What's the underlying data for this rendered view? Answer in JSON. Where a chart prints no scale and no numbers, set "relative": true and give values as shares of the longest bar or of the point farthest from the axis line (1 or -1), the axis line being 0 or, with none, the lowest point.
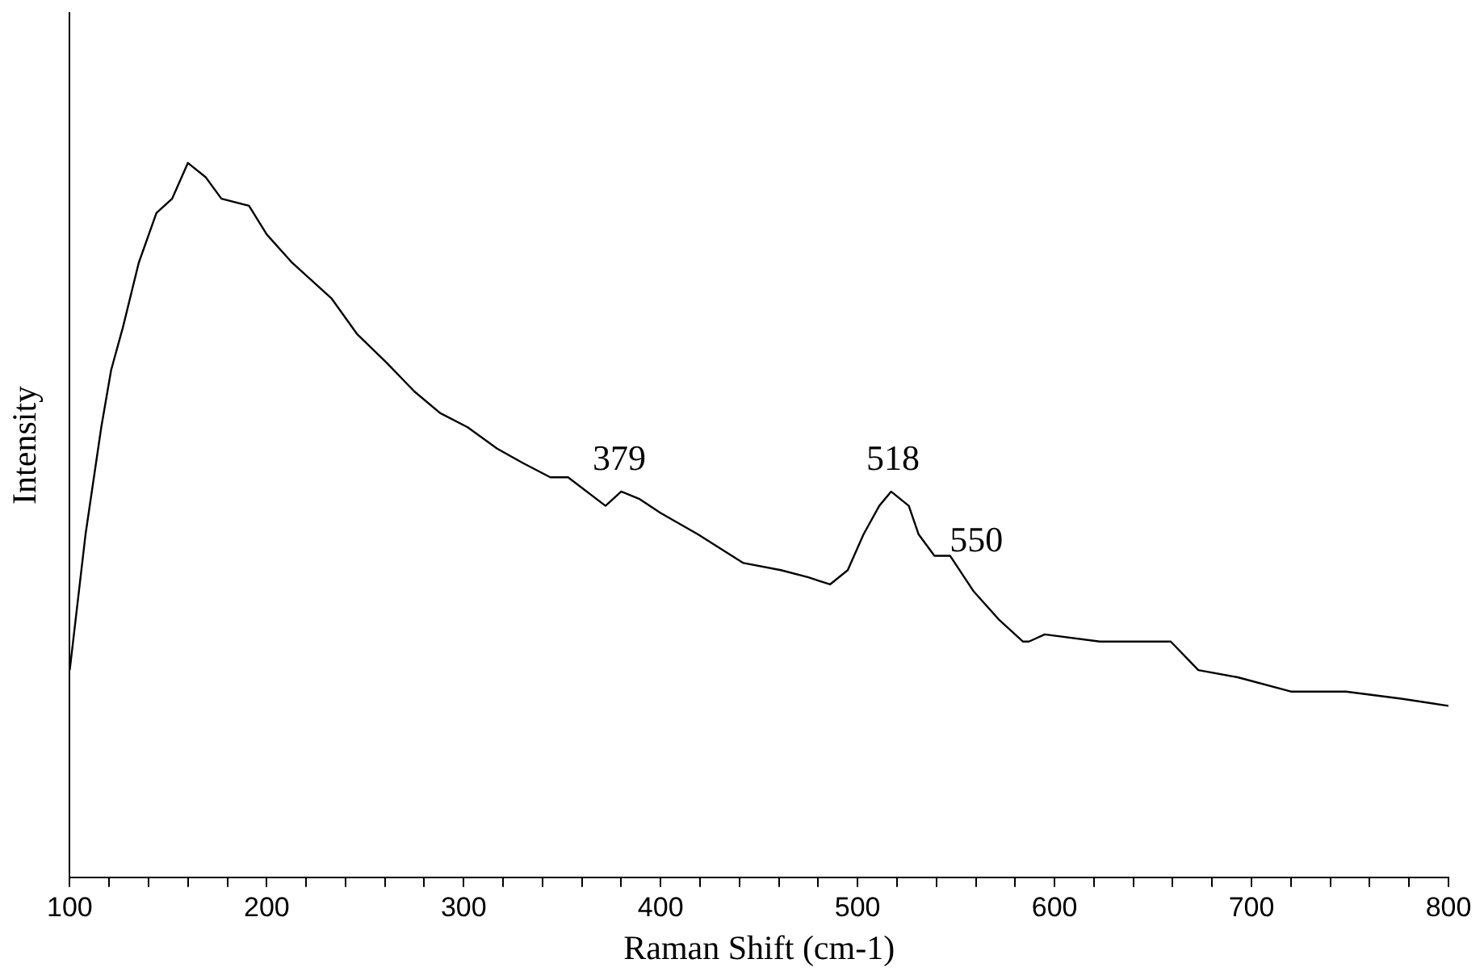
{
  "chart_data": {
    "type": "line",
    "xlabel": "Raman Shift (cm-1)",
    "ylabel": "Intensity",
    "relative": true,
    "grid": false,
    "legend": false,
    "marker": "none",
    "line_style": "solid",
    "xlim": [
      100,
      800
    ],
    "xticks": [
      100,
      {
        "value": 120,
        "label": null
      },
      {
        "value": 140,
        "label": null
      },
      {
        "value": 160,
        "label": null
      },
      {
        "value": 180,
        "label": null
      },
      200,
      {
        "value": 220,
        "label": null
      },
      {
        "value": 240,
        "label": null
      },
      {
        "value": 260,
        "label": null
      },
      {
        "value": 280,
        "label": null
      },
      300,
      {
        "value": 320,
        "label": null
      },
      {
        "value": 340,
        "label": null
      },
      {
        "value": 360,
        "label": null
      },
      {
        "value": 380,
        "label": null
      },
      400,
      {
        "value": 420,
        "label": null
      },
      {
        "value": 440,
        "label": null
      },
      {
        "value": 460,
        "label": null
      },
      {
        "value": 480,
        "label": null
      },
      500,
      {
        "value": 520,
        "label": null
      },
      {
        "value": 540,
        "label": null
      },
      {
        "value": 560,
        "label": null
      },
      {
        "value": 580,
        "label": null
      },
      600,
      {
        "value": 620,
        "label": null
      },
      {
        "value": 640,
        "label": null
      },
      {
        "value": 660,
        "label": null
      },
      {
        "value": 680,
        "label": null
      },
      700,
      {
        "value": 720,
        "label": null
      },
      {
        "value": 740,
        "label": null
      },
      {
        "value": 760,
        "label": null
      },
      {
        "value": 780,
        "label": null
      },
      800
    ],
    "series": [
      {
        "color": "#000000",
        "x": [
          100,
          108,
          116,
          121,
          127,
          135,
          144,
          152,
          160,
          169,
          177,
          191,
          200,
          213,
          233,
          246,
          261,
          275,
          288,
          302,
          317,
          330,
          344,
          353,
          372,
          380,
          389,
          400,
          419,
          442,
          461,
          475,
          486,
          495,
          503,
          511,
          517,
          526,
          531,
          539,
          547,
          559,
          572,
          584,
          587,
          595,
          623,
          659,
          673,
          693,
          720,
          748,
          776,
          800
        ],
        "values": [
          0.29,
          0.48,
          0.63,
          0.71,
          0.77,
          0.86,
          0.93,
          0.95,
          1,
          0.98,
          0.95,
          0.94,
          0.9,
          0.86,
          0.81,
          0.76,
          0.72,
          0.68,
          0.65,
          0.63,
          0.6,
          0.58,
          0.56,
          0.56,
          0.52,
          0.54,
          0.53,
          0.51,
          0.48,
          0.44,
          0.43,
          0.42,
          0.41,
          0.43,
          0.48,
          0.52,
          0.54,
          0.52,
          0.48,
          0.45,
          0.45,
          0.4,
          0.36,
          0.33,
          0.33,
          0.34,
          0.33,
          0.33,
          0.29,
          0.28,
          0.26,
          0.26,
          0.25,
          0.24
        ]
      }
    ],
    "annotations": [
      {
        "text": "379",
        "x": 379,
        "y": 0.54
      },
      {
        "text": "518",
        "x": 518,
        "y": 0.54
      },
      {
        "text": "550",
        "x": 550,
        "y": 0.44
      }
    ]
  }
}
